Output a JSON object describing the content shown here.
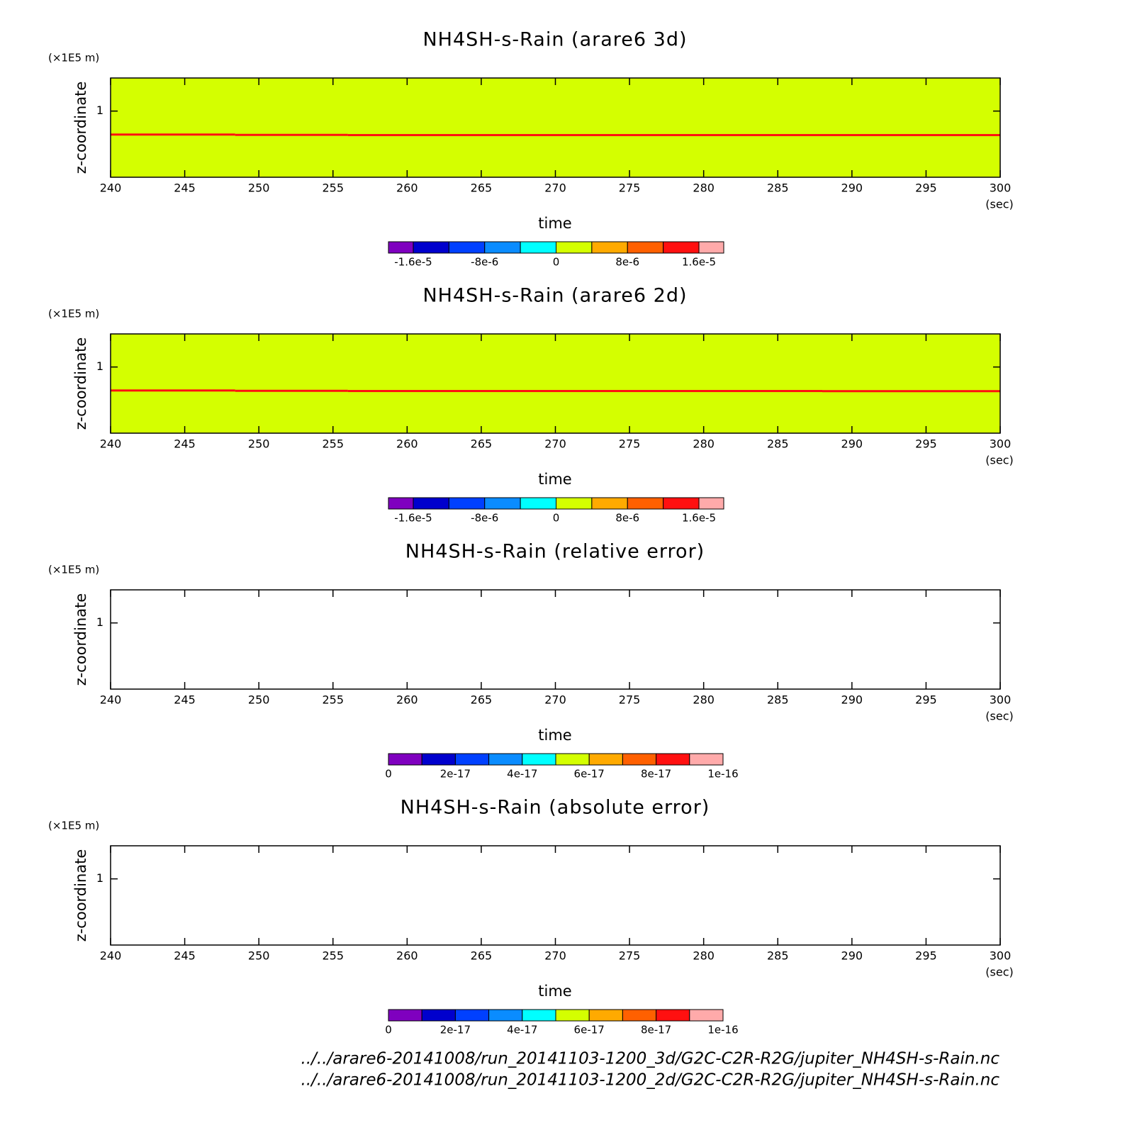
{
  "chart_data": [
    {
      "type": "contour",
      "title": "NH4SH-s-Rain (arare6 3d)",
      "xlabel": "time",
      "xunit": "(sec)",
      "ylabel": "z-coordinate",
      "yunit": "(×1E5 m)",
      "xlim": [
        240,
        300
      ],
      "xticks": [
        240,
        245,
        250,
        255,
        260,
        265,
        270,
        275,
        280,
        285,
        290,
        295,
        300
      ],
      "ylim": [
        0,
        1.5
      ],
      "yticks": [
        1
      ],
      "field": {
        "value": 2e-06
      },
      "layer": {
        "x": [
          240,
          248.4,
          256,
          300
        ],
        "z": [
          0.645,
          0.64,
          0.637
        ],
        "value": 1.4e-05
      },
      "levels": [
        -1.6e-05,
        -1.2e-05,
        -8e-06,
        -4e-06,
        0,
        4e-06,
        8e-06,
        1.2e-05,
        1.6e-05
      ],
      "colors": [
        "#7f00bf",
        "#0000cd",
        "#0040ff",
        "#0a8cff",
        "#00ffff",
        "#d4ff00",
        "#ffaa00",
        "#ff6000",
        "#ff1010",
        "#ffaaaa"
      ],
      "colorbar_ticks": [
        {
          "value": -1.6e-05,
          "label": "-1.6e-5"
        },
        {
          "value": -8e-06,
          "label": "-8e-6"
        },
        0,
        {
          "value": 8e-06,
          "label": "8e-6"
        },
        {
          "value": 1.6e-05,
          "label": "1.6e-5"
        }
      ]
    },
    {
      "type": "contour",
      "title": "NH4SH-s-Rain (arare6 2d)",
      "xlabel": "time",
      "xunit": "(sec)",
      "ylabel": "z-coordinate",
      "yunit": "(×1E5 m)",
      "xlim": [
        240,
        300
      ],
      "xticks": [
        240,
        245,
        250,
        255,
        260,
        265,
        270,
        275,
        280,
        285,
        290,
        295,
        300
      ],
      "ylim": [
        0,
        1.5
      ],
      "yticks": [
        1
      ],
      "field": {
        "value": 2e-06
      },
      "layer": {
        "x": [
          240,
          248.4,
          256,
          288,
          300
        ],
        "z": [
          0.645,
          0.64,
          0.637,
          0.635
        ],
        "value": 1.4e-05
      },
      "levels": [
        -1.6e-05,
        -1.2e-05,
        -8e-06,
        -4e-06,
        0,
        4e-06,
        8e-06,
        1.2e-05,
        1.6e-05
      ],
      "colors": [
        "#7f00bf",
        "#0000cd",
        "#0040ff",
        "#0a8cff",
        "#00ffff",
        "#d4ff00",
        "#ffaa00",
        "#ff6000",
        "#ff1010",
        "#ffaaaa"
      ],
      "colorbar_ticks": [
        {
          "value": -1.6e-05,
          "label": "-1.6e-5"
        },
        {
          "value": -8e-06,
          "label": "-8e-6"
        },
        0,
        {
          "value": 8e-06,
          "label": "8e-6"
        },
        {
          "value": 1.6e-05,
          "label": "1.6e-5"
        }
      ]
    },
    {
      "type": "contour",
      "title": "NH4SH-s-Rain (relative error)",
      "xlabel": "time",
      "xunit": "(sec)",
      "ylabel": "z-coordinate",
      "yunit": "(×1E5 m)",
      "xlim": [
        240,
        300
      ],
      "xticks": [
        240,
        245,
        250,
        255,
        260,
        265,
        270,
        275,
        280,
        285,
        290,
        295,
        300
      ],
      "ylim": [
        0,
        1.5
      ],
      "yticks": [
        1
      ],
      "levels": [
        0,
        1e-17,
        2e-17,
        3e-17,
        4e-17,
        5e-17,
        6e-17,
        7e-17,
        8e-17,
        9e-17,
        1e-16
      ],
      "colors": [
        "#7f00bf",
        "#0000cd",
        "#0040ff",
        "#0a8cff",
        "#00ffff",
        "#d4ff00",
        "#ffaa00",
        "#ff6000",
        "#ff1010",
        "#ffaaaa"
      ],
      "colorbar_ticks": [
        0,
        2e-17,
        4e-17,
        6e-17,
        8e-17,
        1e-16
      ]
    },
    {
      "type": "contour",
      "title": "NH4SH-s-Rain (absolute error)",
      "xlabel": "time",
      "xunit": "(sec)",
      "ylabel": "z-coordinate",
      "yunit": "(×1E5 m)",
      "xlim": [
        240,
        300
      ],
      "xticks": [
        240,
        245,
        250,
        255,
        260,
        265,
        270,
        275,
        280,
        285,
        290,
        295,
        300
      ],
      "ylim": [
        0,
        1.5
      ],
      "yticks": [
        1
      ],
      "levels": [
        0,
        1e-17,
        2e-17,
        3e-17,
        4e-17,
        5e-17,
        6e-17,
        7e-17,
        8e-17,
        9e-17,
        1e-16
      ],
      "colors": [
        "#7f00bf",
        "#0000cd",
        "#0040ff",
        "#0a8cff",
        "#00ffff",
        "#d4ff00",
        "#ffaa00",
        "#ff6000",
        "#ff1010",
        "#ffaaaa"
      ],
      "colorbar_ticks": [
        0,
        2e-17,
        4e-17,
        6e-17,
        8e-17,
        1e-16
      ]
    }
  ],
  "files": [
    "../../arare6-20141008/run_20141103-1200_3d/G2C-C2R-R2G/jupiter_NH4SH-s-Rain.nc",
    "../../arare6-20141008/run_20141103-1200_2d/G2C-C2R-R2G/jupiter_NH4SH-s-Rain.nc"
  ]
}
